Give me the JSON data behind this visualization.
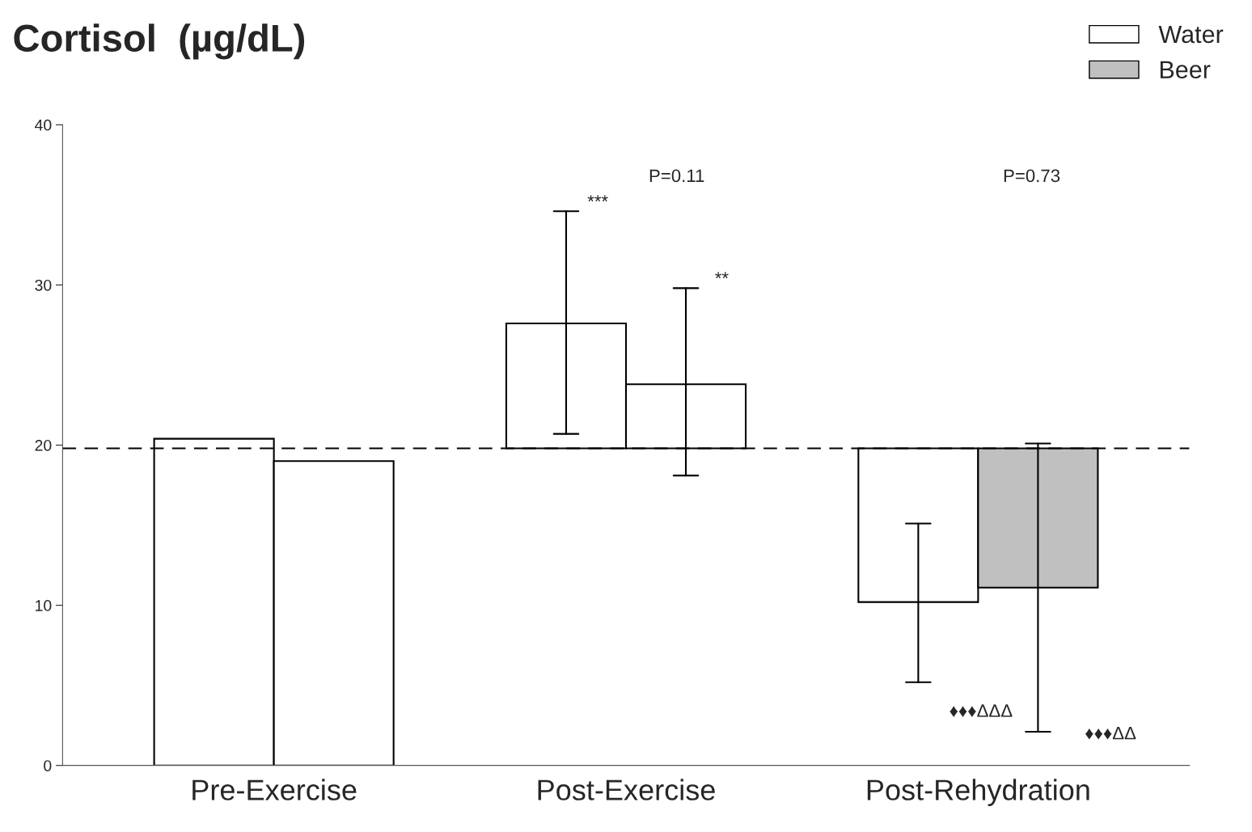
{
  "chart_data": {
    "type": "bar",
    "title": "Cortisol  (µg/dL)",
    "categories": [
      "Pre-Exercise",
      "Post-Exercise",
      "Post-Rehydration"
    ],
    "series": [
      {
        "name": "Water",
        "color": "#ffffff",
        "colors": [
          "#ffffff",
          "#ffffff",
          "#ffffff"
        ],
        "base": [
          0,
          19.8,
          19.8
        ],
        "values": [
          20.4,
          7.8,
          -9.6
        ],
        "errors": [
          null,
          [
            20.7,
            34.6
          ],
          [
            5.2,
            15.1
          ]
        ]
      },
      {
        "name": "Beer",
        "color": "#c0c0c0",
        "colors": [
          "#ffffff",
          "#ffffff",
          "#c0c0c0"
        ],
        "base": [
          0,
          19.8,
          19.8
        ],
        "values": [
          19.0,
          4.0,
          -8.7
        ],
        "errors": [
          null,
          [
            18.1,
            29.8
          ],
          [
            2.1,
            20.1
          ]
        ]
      }
    ],
    "ylim": [
      0,
      40
    ],
    "yticks": [
      0,
      10,
      20,
      30,
      40
    ],
    "ref_lines": [
      {
        "axis": "y",
        "value": 19.8,
        "line_style": "dashed",
        "color": "#000000"
      }
    ],
    "annotations": [
      "***",
      "**",
      "P=0.11",
      "P=0.73",
      "♦♦♦ΔΔΔ",
      "♦♦♦ΔΔ"
    ],
    "legend": "top right",
    "grid": false
  }
}
